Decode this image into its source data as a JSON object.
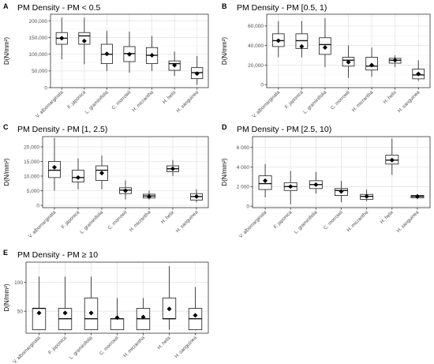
{
  "chart_data": [
    {
      "letter": "A",
      "title": "PM Density - PM < 0.5",
      "type": "box",
      "ylabel": "D(N/mm²)",
      "ylim": [
        0,
        220000
      ],
      "yticks": [
        0,
        50000,
        100000,
        150000,
        200000
      ],
      "ytick_labels": [
        "0",
        "50,000",
        "100,000",
        "150,000",
        "200,000"
      ],
      "categories": [
        "V. albomarginata",
        "F. japonica",
        "L. graminifolia",
        "C. morrowii",
        "H. micrantha",
        "H. helix",
        "H. sanguinea"
      ],
      "boxes": [
        {
          "min": 85000,
          "q1": 130000,
          "median": 148000,
          "q3": 165000,
          "max": 210000,
          "mean": 148000
        },
        {
          "min": 70000,
          "q1": 130000,
          "median": 155000,
          "q3": 165000,
          "max": 210000,
          "mean": 140000
        },
        {
          "min": 50000,
          "q1": 72000,
          "median": 100000,
          "q3": 130000,
          "max": 170000,
          "mean": 101000
        },
        {
          "min": 45000,
          "q1": 78000,
          "median": 102000,
          "q3": 123000,
          "max": 168000,
          "mean": 100000
        },
        {
          "min": 50000,
          "q1": 72000,
          "median": 97000,
          "q3": 120000,
          "max": 155000,
          "mean": 97000
        },
        {
          "min": 35000,
          "q1": 52000,
          "median": 72000,
          "q3": 80000,
          "max": 108000,
          "mean": 67000
        },
        {
          "min": 8000,
          "q1": 27000,
          "median": 45000,
          "q3": 60000,
          "max": 95000,
          "mean": 42000
        }
      ]
    },
    {
      "letter": "B",
      "title": "PM Density - PM [0.5, 1)",
      "type": "box",
      "ylabel": "D(N/mm²)",
      "ylim": [
        -3000,
        72000
      ],
      "yticks": [
        0,
        20000,
        40000,
        60000
      ],
      "ytick_labels": [
        "0",
        "20,000",
        "40,000",
        "60,000"
      ],
      "categories": [
        "V. albomarginata",
        "F. japonica",
        "L. graminifolia",
        "C. morrowii",
        "H. micrantha",
        "H. helix",
        "H. sanguinea"
      ],
      "boxes": [
        {
          "min": 28000,
          "q1": 39000,
          "median": 45000,
          "q3": 52000,
          "max": 65000,
          "mean": 45000
        },
        {
          "min": 28000,
          "q1": 37000,
          "median": 45000,
          "q3": 52000,
          "max": 65000,
          "mean": 39000
        },
        {
          "min": 18000,
          "q1": 31000,
          "median": 41000,
          "q3": 48000,
          "max": 68000,
          "mean": 38000
        },
        {
          "min": 7000,
          "q1": 19000,
          "median": 25000,
          "q3": 28000,
          "max": 40000,
          "mean": 23000
        },
        {
          "min": 8000,
          "q1": 15000,
          "median": 19000,
          "q3": 28000,
          "max": 38000,
          "mean": 20000
        },
        {
          "min": 18000,
          "q1": 22000,
          "median": 25000,
          "q3": 27000,
          "max": 30000,
          "mean": 25000
        },
        {
          "min": 4000,
          "q1": 6000,
          "median": 10000,
          "q3": 16000,
          "max": 25000,
          "mean": 11000
        }
      ]
    },
    {
      "letter": "C",
      "title": "PM Density - PM [1, 2.5)",
      "type": "box",
      "ylabel": "D(N/mm²)",
      "ylim": [
        -800,
        23500
      ],
      "yticks": [
        0,
        5000,
        10000,
        15000,
        20000
      ],
      "ytick_labels": [
        "0",
        "5,000",
        "10,000",
        "15,000",
        "20,000"
      ],
      "categories": [
        "V. albomarginata",
        "F. japonica",
        "L. graminifolia",
        "C. morrowii",
        "H. micrantha",
        "H. helix",
        "H. sanguinea"
      ],
      "boxes": [
        {
          "min": 5000,
          "q1": 9500,
          "median": 12000,
          "q3": 15000,
          "max": 23000,
          "mean": 13000
        },
        {
          "min": 5500,
          "q1": 8000,
          "median": 9500,
          "q3": 12000,
          "max": 16000,
          "mean": 9500
        },
        {
          "min": 5500,
          "q1": 8500,
          "median": 12000,
          "q3": 13500,
          "max": 17000,
          "mean": 11000
        },
        {
          "min": 2000,
          "q1": 4000,
          "median": 5200,
          "q3": 6000,
          "max": 8500,
          "mean": 5000
        },
        {
          "min": 2000,
          "q1": 2500,
          "median": 3200,
          "q3": 3800,
          "max": 5000,
          "mean": 3000
        },
        {
          "min": 10000,
          "q1": 11500,
          "median": 12500,
          "q3": 13500,
          "max": 15500,
          "mean": 12500
        },
        {
          "min": 1000,
          "q1": 1800,
          "median": 3000,
          "q3": 4000,
          "max": 5500,
          "mean": 3000
        }
      ]
    },
    {
      "letter": "D",
      "title": "PM Density - PM [2.5, 10)",
      "type": "box",
      "ylabel": "D(N/mm²)",
      "ylim": [
        -150,
        7100
      ],
      "yticks": [
        0,
        2000,
        4000,
        6000
      ],
      "ytick_labels": [
        "0",
        "2 000",
        "4 000",
        "6 000"
      ],
      "categories": [
        "V. albomarginata",
        "F. japonica",
        "L. graminifolia",
        "C. morrowii",
        "H. micrantha",
        "H. helix",
        "H. sanguinea"
      ],
      "boxes": [
        {
          "min": 900,
          "q1": 1700,
          "median": 2300,
          "q3": 3100,
          "max": 4300,
          "mean": 2600
        },
        {
          "min": 200,
          "q1": 1600,
          "median": 2000,
          "q3": 2400,
          "max": 3600,
          "mean": 2000
        },
        {
          "min": 1300,
          "q1": 1800,
          "median": 2200,
          "q3": 2600,
          "max": 3500,
          "mean": 2200
        },
        {
          "min": 400,
          "q1": 1100,
          "median": 1600,
          "q3": 1800,
          "max": 2600,
          "mean": 1500
        },
        {
          "min": 500,
          "q1": 700,
          "median": 1000,
          "q3": 1200,
          "max": 1700,
          "mean": 1000
        },
        {
          "min": 3200,
          "q1": 4300,
          "median": 4700,
          "q3": 5200,
          "max": 6900,
          "mean": 4700
        },
        {
          "min": 700,
          "q1": 850,
          "median": 1000,
          "q3": 1100,
          "max": 1200,
          "mean": 1000
        }
      ]
    },
    {
      "letter": "E",
      "title": "PM Density - PM ≥ 10",
      "type": "box",
      "ylabel": "D(N/mm²)",
      "ylim": [
        12,
        135
      ],
      "yticks": [
        50,
        100
      ],
      "ytick_labels": [
        "50",
        "100"
      ],
      "categories": [
        "V. albomarginata",
        "F. japonica",
        "L. graminifolia",
        "C. morrowii",
        "H. micrantha",
        "H. helix",
        "H. sanguinea"
      ],
      "boxes": [
        {
          "min": 18,
          "q1": 18,
          "median": 55,
          "q3": 55,
          "max": 110,
          "mean": 47
        },
        {
          "min": 18,
          "q1": 18,
          "median": 37,
          "q3": 55,
          "max": 110,
          "mean": 47
        },
        {
          "min": 18,
          "q1": 18,
          "median": 37,
          "q3": 73,
          "max": 110,
          "mean": 47
        },
        {
          "min": 18,
          "q1": 18,
          "median": 37,
          "q3": 37,
          "max": 73,
          "mean": 39
        },
        {
          "min": 18,
          "q1": 18,
          "median": 37,
          "q3": 55,
          "max": 73,
          "mean": 40
        },
        {
          "min": 18,
          "q1": 37,
          "median": 37,
          "q3": 73,
          "max": 128,
          "mean": 54
        },
        {
          "min": 18,
          "q1": 18,
          "median": 37,
          "q3": 55,
          "max": 92,
          "mean": 43
        }
      ]
    }
  ]
}
